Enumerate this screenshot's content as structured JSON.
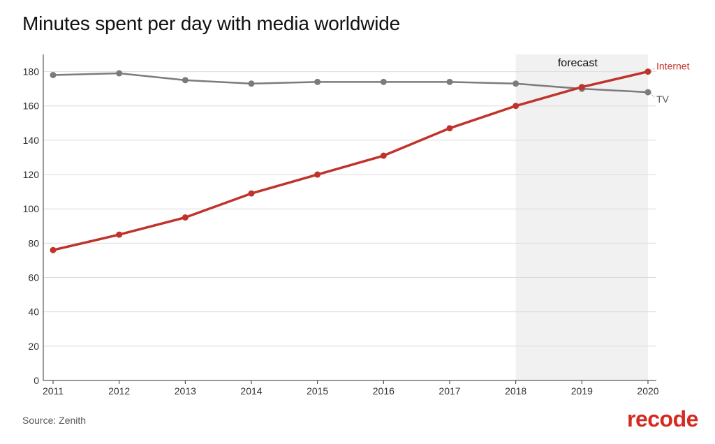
{
  "header": {
    "title": "Minutes spent per day with media worldwide"
  },
  "footer": {
    "source": "Source: Zenith",
    "brand": "recode"
  },
  "chart_data": {
    "type": "line",
    "title": "Minutes spent per day with media worldwide",
    "xlabel": "",
    "ylabel": "",
    "x": [
      2011,
      2012,
      2013,
      2014,
      2015,
      2016,
      2017,
      2018,
      2019,
      2020
    ],
    "ylim": [
      0,
      190
    ],
    "yticks": [
      0,
      20,
      40,
      60,
      80,
      100,
      120,
      140,
      160,
      180
    ],
    "grid": true,
    "legend": "inline-right",
    "forecast_region": {
      "x_start": 2018,
      "x_end": 2020,
      "label": "forecast",
      "color": "#f1f1f1"
    },
    "series": [
      {
        "name": "Internet",
        "color": "#c0332b",
        "values": [
          76,
          85,
          95,
          109,
          120,
          131,
          147,
          160,
          171,
          180
        ]
      },
      {
        "name": "TV",
        "color": "#7b7b7b",
        "values": [
          178,
          179,
          175,
          173,
          174,
          174,
          174,
          173,
          170,
          168
        ]
      }
    ]
  }
}
